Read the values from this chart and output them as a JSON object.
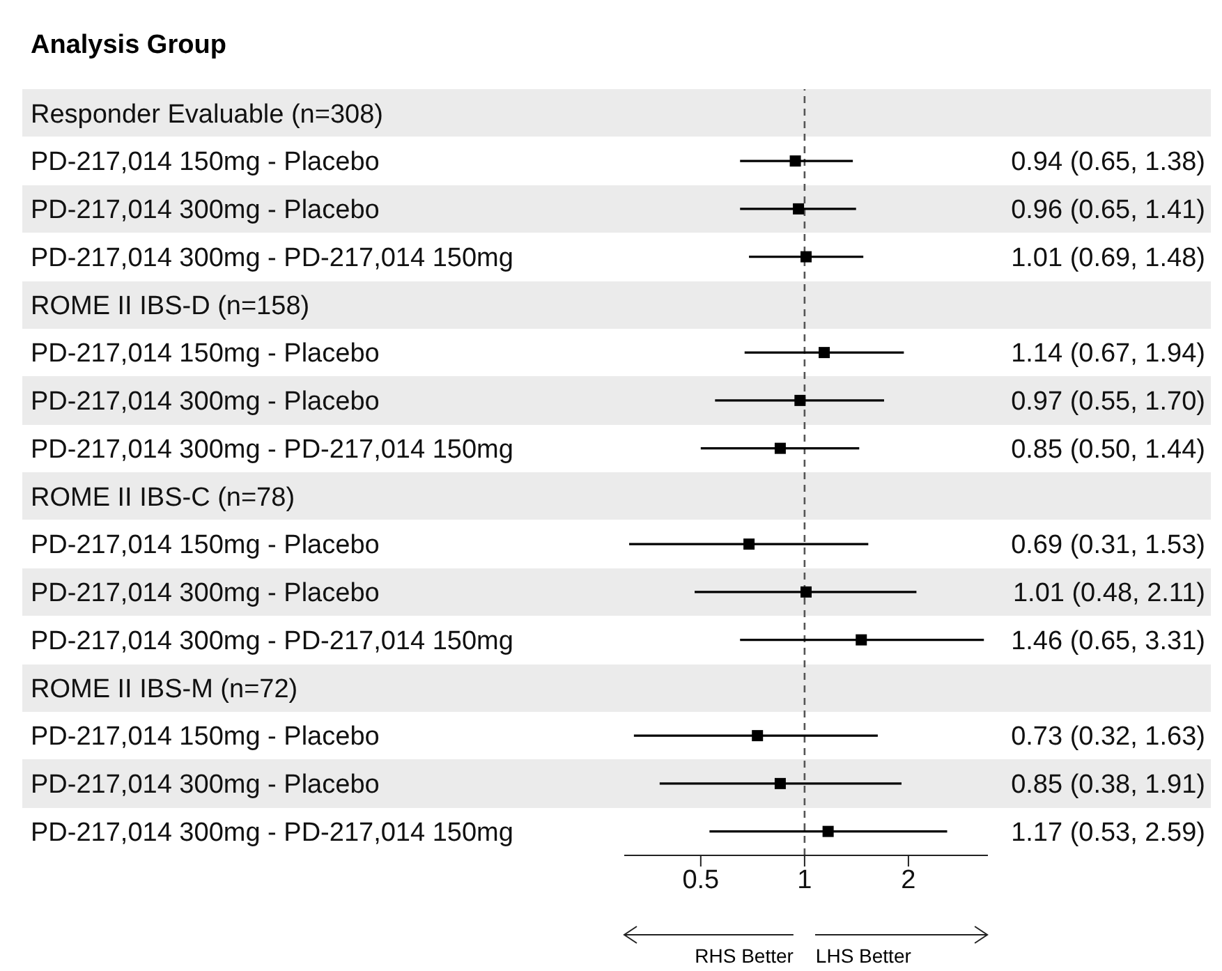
{
  "chart_data": {
    "type": "scatter",
    "orientation": "horizontal",
    "title": "Analysis Group",
    "categories": [
      "Responder Evaluable (n=308)",
      "PD-217,014 150mg - Placebo",
      "PD-217,014 300mg - Placebo",
      "PD-217,014 300mg - PD-217,014 150mg",
      "ROME II IBS-D (n=158)",
      "PD-217,014 150mg - Placebo",
      "PD-217,014 300mg - Placebo",
      "PD-217,014 300mg - PD-217,014 150mg",
      "ROME II IBS-C (n=78)",
      "PD-217,014 150mg - Placebo",
      "PD-217,014 300mg - Placebo",
      "PD-217,014 300mg - PD-217,014 150mg",
      "ROME II IBS-M (n=72)",
      "PD-217,014 150mg - Placebo",
      "PD-217,014 300mg - Placebo",
      "PD-217,014 300mg - PD-217,014 150mg"
    ],
    "values": [
      null,
      0.94,
      0.96,
      1.01,
      null,
      1.14,
      0.97,
      0.85,
      null,
      0.69,
      1.01,
      1.46,
      null,
      0.73,
      0.85,
      1.17
    ],
    "errors": [
      null,
      [
        0.65,
        1.38
      ],
      [
        0.65,
        1.41
      ],
      [
        0.69,
        1.48
      ],
      null,
      [
        0.67,
        1.94
      ],
      [
        0.55,
        1.7
      ],
      [
        0.5,
        1.44
      ],
      null,
      [
        0.31,
        1.53
      ],
      [
        0.48,
        2.11
      ],
      [
        0.65,
        3.31
      ],
      null,
      [
        0.32,
        1.63
      ],
      [
        0.38,
        1.91
      ],
      [
        0.53,
        2.59
      ]
    ],
    "value_labels": [
      null,
      "0.94 (0.65, 1.38)",
      "0.96 (0.65, 1.41)",
      "1.01 (0.69, 1.48)",
      null,
      "1.14 (0.67, 1.94)",
      "0.97 (0.55, 1.70)",
      "0.85 (0.50, 1.44)",
      null,
      "0.69 (0.31, 1.53)",
      "1.01 (0.48, 2.11)",
      "1.46 (0.65, 3.31)",
      null,
      "0.73 (0.32, 1.63)",
      "0.85 (0.38, 1.91)",
      "1.17 (0.53, 2.59)"
    ],
    "color": "#000000",
    "marker": "square",
    "log": "x",
    "xlim": [
      0.3,
      3.4
    ],
    "xticks": [
      0.5,
      1,
      2
    ],
    "ref_lines": [
      {
        "axis": "x",
        "value": 1,
        "line_style": "dashed",
        "color": "#555555"
      }
    ],
    "annotations": [
      "RHS Better",
      "LHS Better"
    ]
  }
}
